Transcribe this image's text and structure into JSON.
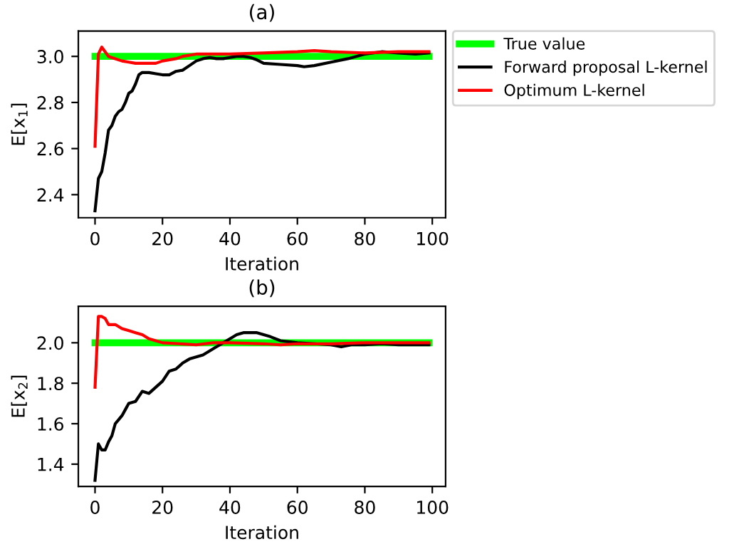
{
  "chart_data": [
    {
      "type": "line",
      "title": "(a)",
      "xlabel": "Iteration",
      "ylabel": "E[x$_{1}$]",
      "xlim": [
        -4.95,
        103.95
      ],
      "ylim": [
        2.3,
        3.11
      ],
      "xticks": [
        0,
        20,
        40,
        60,
        80,
        100
      ],
      "yticks": [
        2.4,
        2.6,
        2.8,
        {
          "value": 3.0,
          "label": "3.0"
        }
      ],
      "legend": "right",
      "grid": false,
      "marker": "none",
      "line_style": "solid",
      "series": [
        {
          "name": "True value",
          "color": "#00ff00",
          "x": [
            0,
            99
          ],
          "values": [
            3.0,
            3.0
          ]
        },
        {
          "name": "Forward proposal L-kernel",
          "color": "#000000",
          "x": [
            0,
            1,
            2,
            3,
            4,
            5,
            6,
            7,
            8,
            9,
            10,
            11,
            12,
            13,
            14,
            16,
            18,
            20,
            22,
            24,
            26,
            28,
            30,
            32,
            34,
            36,
            38,
            40,
            42,
            44,
            46,
            48,
            50,
            55,
            60,
            62,
            65,
            70,
            75,
            80,
            85,
            90,
            95,
            99
          ],
          "values": [
            2.33,
            2.47,
            2.5,
            2.58,
            2.68,
            2.7,
            2.74,
            2.76,
            2.77,
            2.8,
            2.84,
            2.85,
            2.88,
            2.92,
            2.93,
            2.93,
            2.925,
            2.92,
            2.92,
            2.935,
            2.94,
            2.96,
            2.98,
            2.99,
            2.995,
            2.99,
            2.99,
            2.995,
            3.0,
            3.0,
            2.995,
            2.985,
            2.97,
            2.965,
            2.96,
            2.955,
            2.96,
            2.975,
            2.99,
            3.01,
            3.02,
            3.015,
            3.01,
            3.015
          ]
        },
        {
          "name": "Optimum L-kernel",
          "color": "#ff0000",
          "x": [
            0,
            1,
            2,
            3,
            4,
            6,
            8,
            10,
            12,
            15,
            18,
            20,
            24,
            26,
            30,
            40,
            50,
            60,
            65,
            70,
            80,
            90,
            99
          ],
          "values": [
            2.61,
            3.01,
            3.04,
            3.02,
            3.0,
            2.99,
            2.98,
            2.975,
            2.97,
            2.97,
            2.97,
            2.98,
            2.99,
            3.0,
            3.01,
            3.01,
            3.015,
            3.02,
            3.025,
            3.02,
            3.015,
            3.02,
            3.02
          ]
        }
      ]
    },
    {
      "type": "line",
      "title": "(b)",
      "xlabel": "Iteration",
      "ylabel": "E[x$_{2}$]",
      "xlim": [
        -4.95,
        103.95
      ],
      "ylim": [
        1.29,
        2.18
      ],
      "xticks": [
        0,
        20,
        40,
        60,
        80,
        100
      ],
      "yticks": [
        1.4,
        1.6,
        1.8,
        {
          "value": 2.0,
          "label": "2.0"
        }
      ],
      "grid": false,
      "marker": "none",
      "line_style": "solid",
      "series": [
        {
          "color": "#00ff00",
          "x": [
            0,
            99
          ],
          "values": [
            2.0,
            2.0
          ]
        },
        {
          "color": "#000000",
          "x": [
            0,
            1,
            2,
            3,
            4,
            5,
            6,
            7,
            8,
            9,
            10,
            12,
            14,
            16,
            18,
            20,
            22,
            24,
            26,
            28,
            30,
            32,
            34,
            36,
            38,
            40,
            42,
            44,
            48,
            50,
            52,
            55,
            60,
            65,
            70,
            73,
            76,
            80,
            85,
            90,
            95,
            99
          ],
          "values": [
            1.32,
            1.5,
            1.47,
            1.47,
            1.51,
            1.54,
            1.6,
            1.62,
            1.64,
            1.67,
            1.7,
            1.71,
            1.76,
            1.75,
            1.78,
            1.81,
            1.86,
            1.87,
            1.9,
            1.92,
            1.93,
            1.94,
            1.96,
            1.98,
            2.0,
            2.02,
            2.04,
            2.05,
            2.05,
            2.04,
            2.03,
            2.01,
            2.0,
            1.995,
            1.99,
            1.98,
            1.99,
            1.99,
            1.995,
            1.99,
            1.99,
            1.99
          ]
        },
        {
          "color": "#ff0000",
          "x": [
            0,
            1,
            2,
            3,
            4,
            6,
            8,
            10,
            12,
            14,
            16,
            18,
            20,
            25,
            30,
            35,
            40,
            50,
            55,
            60,
            70,
            80,
            90,
            99
          ],
          "values": [
            1.78,
            2.13,
            2.13,
            2.12,
            2.09,
            2.09,
            2.07,
            2.06,
            2.05,
            2.04,
            2.02,
            2.01,
            2.0,
            1.995,
            1.99,
            2.0,
            2.0,
            1.995,
            1.99,
            1.995,
            1.995,
            2.0,
            2.0,
            2.0
          ]
        }
      ]
    }
  ]
}
